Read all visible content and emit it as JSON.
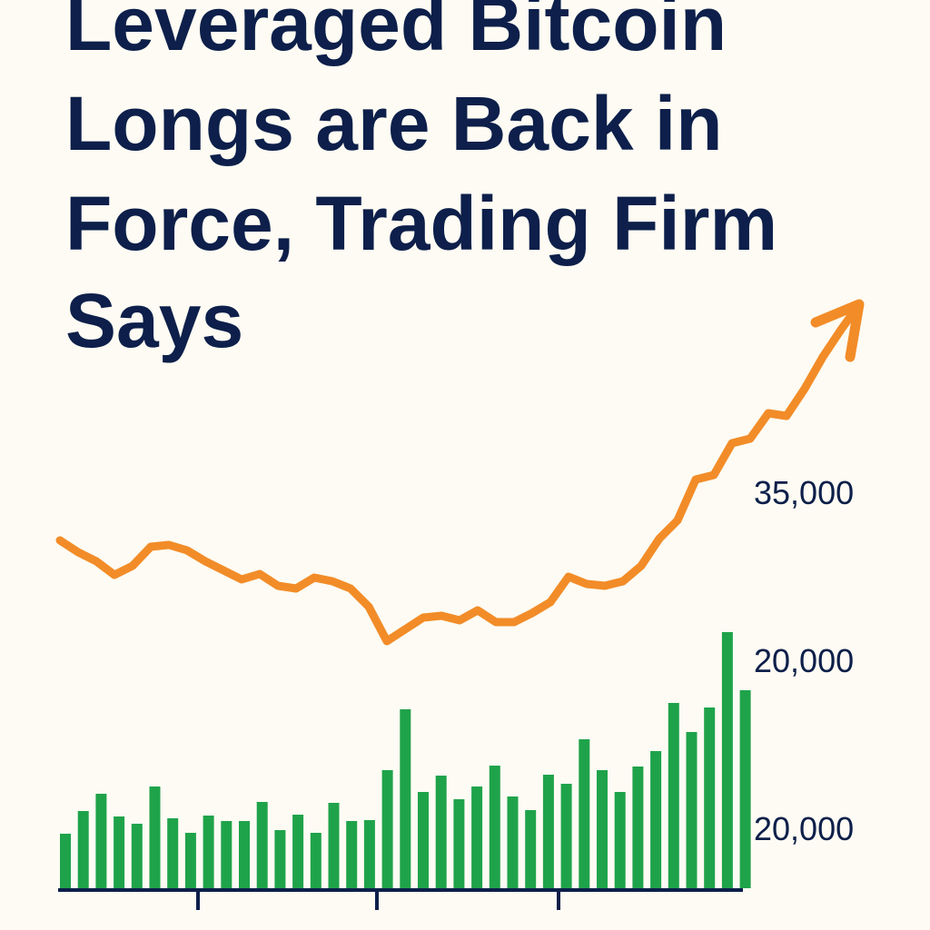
{
  "chart_data": {
    "type": "bar",
    "title_lines": [
      "Leveraged Bitcoin",
      "Longs are Back in",
      "Force, Trading Firm",
      "Says"
    ],
    "y_labels": [
      "35,000",
      "20,000",
      "20,000"
    ],
    "values": [
      60,
      85,
      104,
      79,
      71,
      112,
      77,
      61,
      80,
      74,
      74,
      95,
      64,
      81,
      61,
      94,
      74,
      75,
      130,
      197,
      106,
      124,
      98,
      112,
      135,
      101,
      86,
      125,
      115,
      164,
      130,
      106,
      134,
      151,
      204,
      172,
      199,
      282,
      218
    ],
    "color": "#1fa34a",
    "line": {
      "color": "#f28c28",
      "values": [
        383,
        370,
        360,
        345,
        355,
        376,
        378,
        372,
        360,
        350,
        340,
        346,
        333,
        330,
        342,
        338,
        330,
        310,
        272,
        285,
        298,
        300,
        295,
        306,
        293,
        293,
        303,
        315,
        343,
        335,
        333,
        338,
        355,
        385,
        405,
        450,
        455,
        490,
        495,
        523,
        520,
        550,
        585,
        615,
        643
      ]
    },
    "ylim": [
      0,
      978
    ]
  }
}
